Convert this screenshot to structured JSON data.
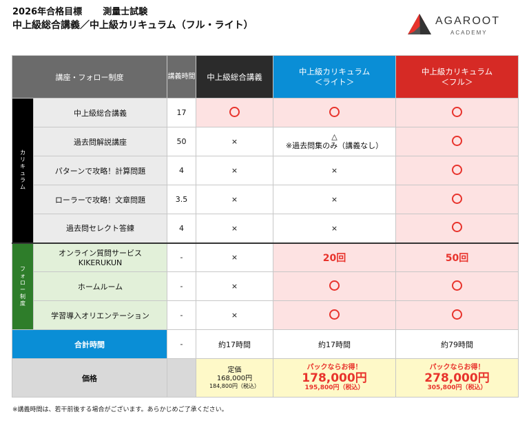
{
  "header": {
    "title_line1_a": "2026年合格目標",
    "title_line1_b": "測量士試験",
    "title_line2": "中上級総合講義／中上級カリキュラム（フル・ライト）"
  },
  "logo": {
    "name": "AGAROOT",
    "sub": "ACADEMY"
  },
  "table": {
    "col_course": "講座・フォロー制度",
    "col_hours": "講義時間",
    "col_all": "中上級総合講義",
    "col_lite_1": "中上級カリキュラム",
    "col_lite_2": "＜ライト＞",
    "col_full_1": "中上級カリキュラム",
    "col_full_2": "＜フル＞",
    "cat_curriculum": "カリキュラム",
    "cat_follow": "フォロー制度",
    "rows": [
      {
        "name": "中上級総合講義",
        "hours": "17",
        "all": "○",
        "lite": "○",
        "full": "○"
      },
      {
        "name": "過去問解説講座",
        "hours": "50",
        "all": "×",
        "lite_sym": "△",
        "lite_note": "※過去問集のみ（講義なし）",
        "full": "○"
      },
      {
        "name": "パターンで攻略！計算問題",
        "hours": "4",
        "all": "×",
        "lite": "×",
        "full": "○"
      },
      {
        "name": "ローラーで攻略！文章問題",
        "hours": "3.5",
        "all": "×",
        "lite": "×",
        "full": "○"
      },
      {
        "name": "過去問セレクト答練",
        "hours": "4",
        "all": "×",
        "lite": "×",
        "full": "○"
      },
      {
        "name_1": "オンライン質問サービス",
        "name_2": "KIKERUKUN",
        "hours": "-",
        "all": "×",
        "lite": "20回",
        "full": "50回"
      },
      {
        "name": "ホームルーム",
        "hours": "-",
        "all": "×",
        "lite": "○",
        "full": "○"
      },
      {
        "name": "学習導入オリエンテーション",
        "hours": "-",
        "all": "×",
        "lite": "○",
        "full": "○"
      }
    ],
    "total": {
      "label": "合計時間",
      "hours": "-",
      "all": "約17時間",
      "lite": "約17時間",
      "full": "約79時間"
    },
    "price": {
      "label": "価格",
      "all_1": "定価",
      "all_2": "168,000円",
      "all_3": "184,800円（税込）",
      "lite_1": "パックならお得！",
      "lite_2": "178,000円",
      "lite_3": "195,800円（税込）",
      "full_1": "パックならお得！",
      "full_2": "278,000円",
      "full_3": "305,800円（税込）"
    }
  },
  "footnote": "※講義時間は、若干前後する場合がございます。あらかじめご了承ください。"
}
